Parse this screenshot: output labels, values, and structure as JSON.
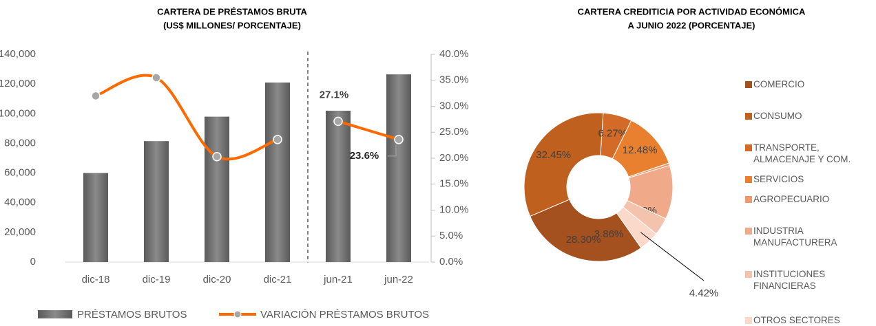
{
  "chart_data": [
    {
      "type": "bar_line",
      "title": "CARTERA DE PRÉSTAMOS BRUTA",
      "subtitle": "(US$ MILLONES/ PORCENTAJE)",
      "categories": [
        "dic-18",
        "dic-19",
        "dic-20",
        "dic-21",
        "jun-21",
        "jun-22"
      ],
      "series": [
        {
          "name": "PRÉSTAMOS BRUTOS",
          "type": "bar",
          "color": "#6f6f6f",
          "values": [
            60000,
            81500,
            98000,
            121000,
            102000,
            126500
          ]
        },
        {
          "name": "VARIACIÓN PRÉSTAMOS BRUTOS",
          "type": "line",
          "axis": "y2",
          "color": "#ff6a00",
          "marker_color": "#a6a6a6",
          "values": [
            32.0,
            35.5,
            20.3,
            23.6,
            27.1,
            23.6
          ],
          "value_labels": [
            null,
            null,
            null,
            null,
            "27.1%",
            "23.6%"
          ]
        }
      ],
      "ylim": [
        0,
        140000
      ],
      "yticks": [
        0,
        {
          "value": 20000,
          "label": "20,000"
        },
        {
          "value": 40000,
          "label": "40,000"
        },
        {
          "value": 60000,
          "label": "60,000"
        },
        {
          "value": 80000,
          "label": "80,000"
        },
        {
          "value": 100000,
          "label": "100,000"
        },
        {
          "value": 120000,
          "label": "120,000"
        },
        {
          "value": 140000,
          "label": "140,000"
        }
      ],
      "y2lim": [
        0,
        40
      ],
      "y2ticks": [
        {
          "value": 0,
          "label": "0.0%"
        },
        {
          "value": 5,
          "label": "5.0%"
        },
        {
          "value": 10,
          "label": "10.0%"
        },
        {
          "value": 15,
          "label": "15.0%"
        },
        {
          "value": 20,
          "label": "20.0%"
        },
        {
          "value": 25,
          "label": "25.0%"
        },
        {
          "value": 30,
          "label": "30.0%"
        },
        {
          "value": 35,
          "label": "35.0%"
        },
        {
          "value": 40,
          "label": "40.0%"
        }
      ],
      "legend": "bottom"
    },
    {
      "type": "donut",
      "title": "CARTERA CREDITICIA POR ACTIVIDAD ECONÓMICA",
      "subtitle": "A JUNIO 2022 (PORCENTAJE)",
      "categories": [
        "COMERCIO",
        "CONSUMO",
        "TRANSPORTE, ALMACENAJE Y COM.",
        "SERVICIOS",
        "AGROPECUARIO",
        "INDUSTRIA MANUFACTURERA",
        "INSTITUCIONES FINANCIERAS",
        "OTROS SECTORES"
      ],
      "values": [
        28.3,
        32.45,
        6.27,
        12.48,
        0.53,
        11.7,
        3.86,
        4.42
      ],
      "value_labels": [
        "28.30%",
        "32.45%",
        "6.27%",
        "12.48%",
        "0.53%",
        "11.70%",
        "3.86%",
        "4.42%"
      ],
      "colors": [
        "#a5501f",
        "#c0601f",
        "#d46a27",
        "#e8802f",
        "#ee9a6e",
        "#f0aa8a",
        "#f4c3ae",
        "#fad9ca"
      ],
      "legend": "right"
    }
  ]
}
